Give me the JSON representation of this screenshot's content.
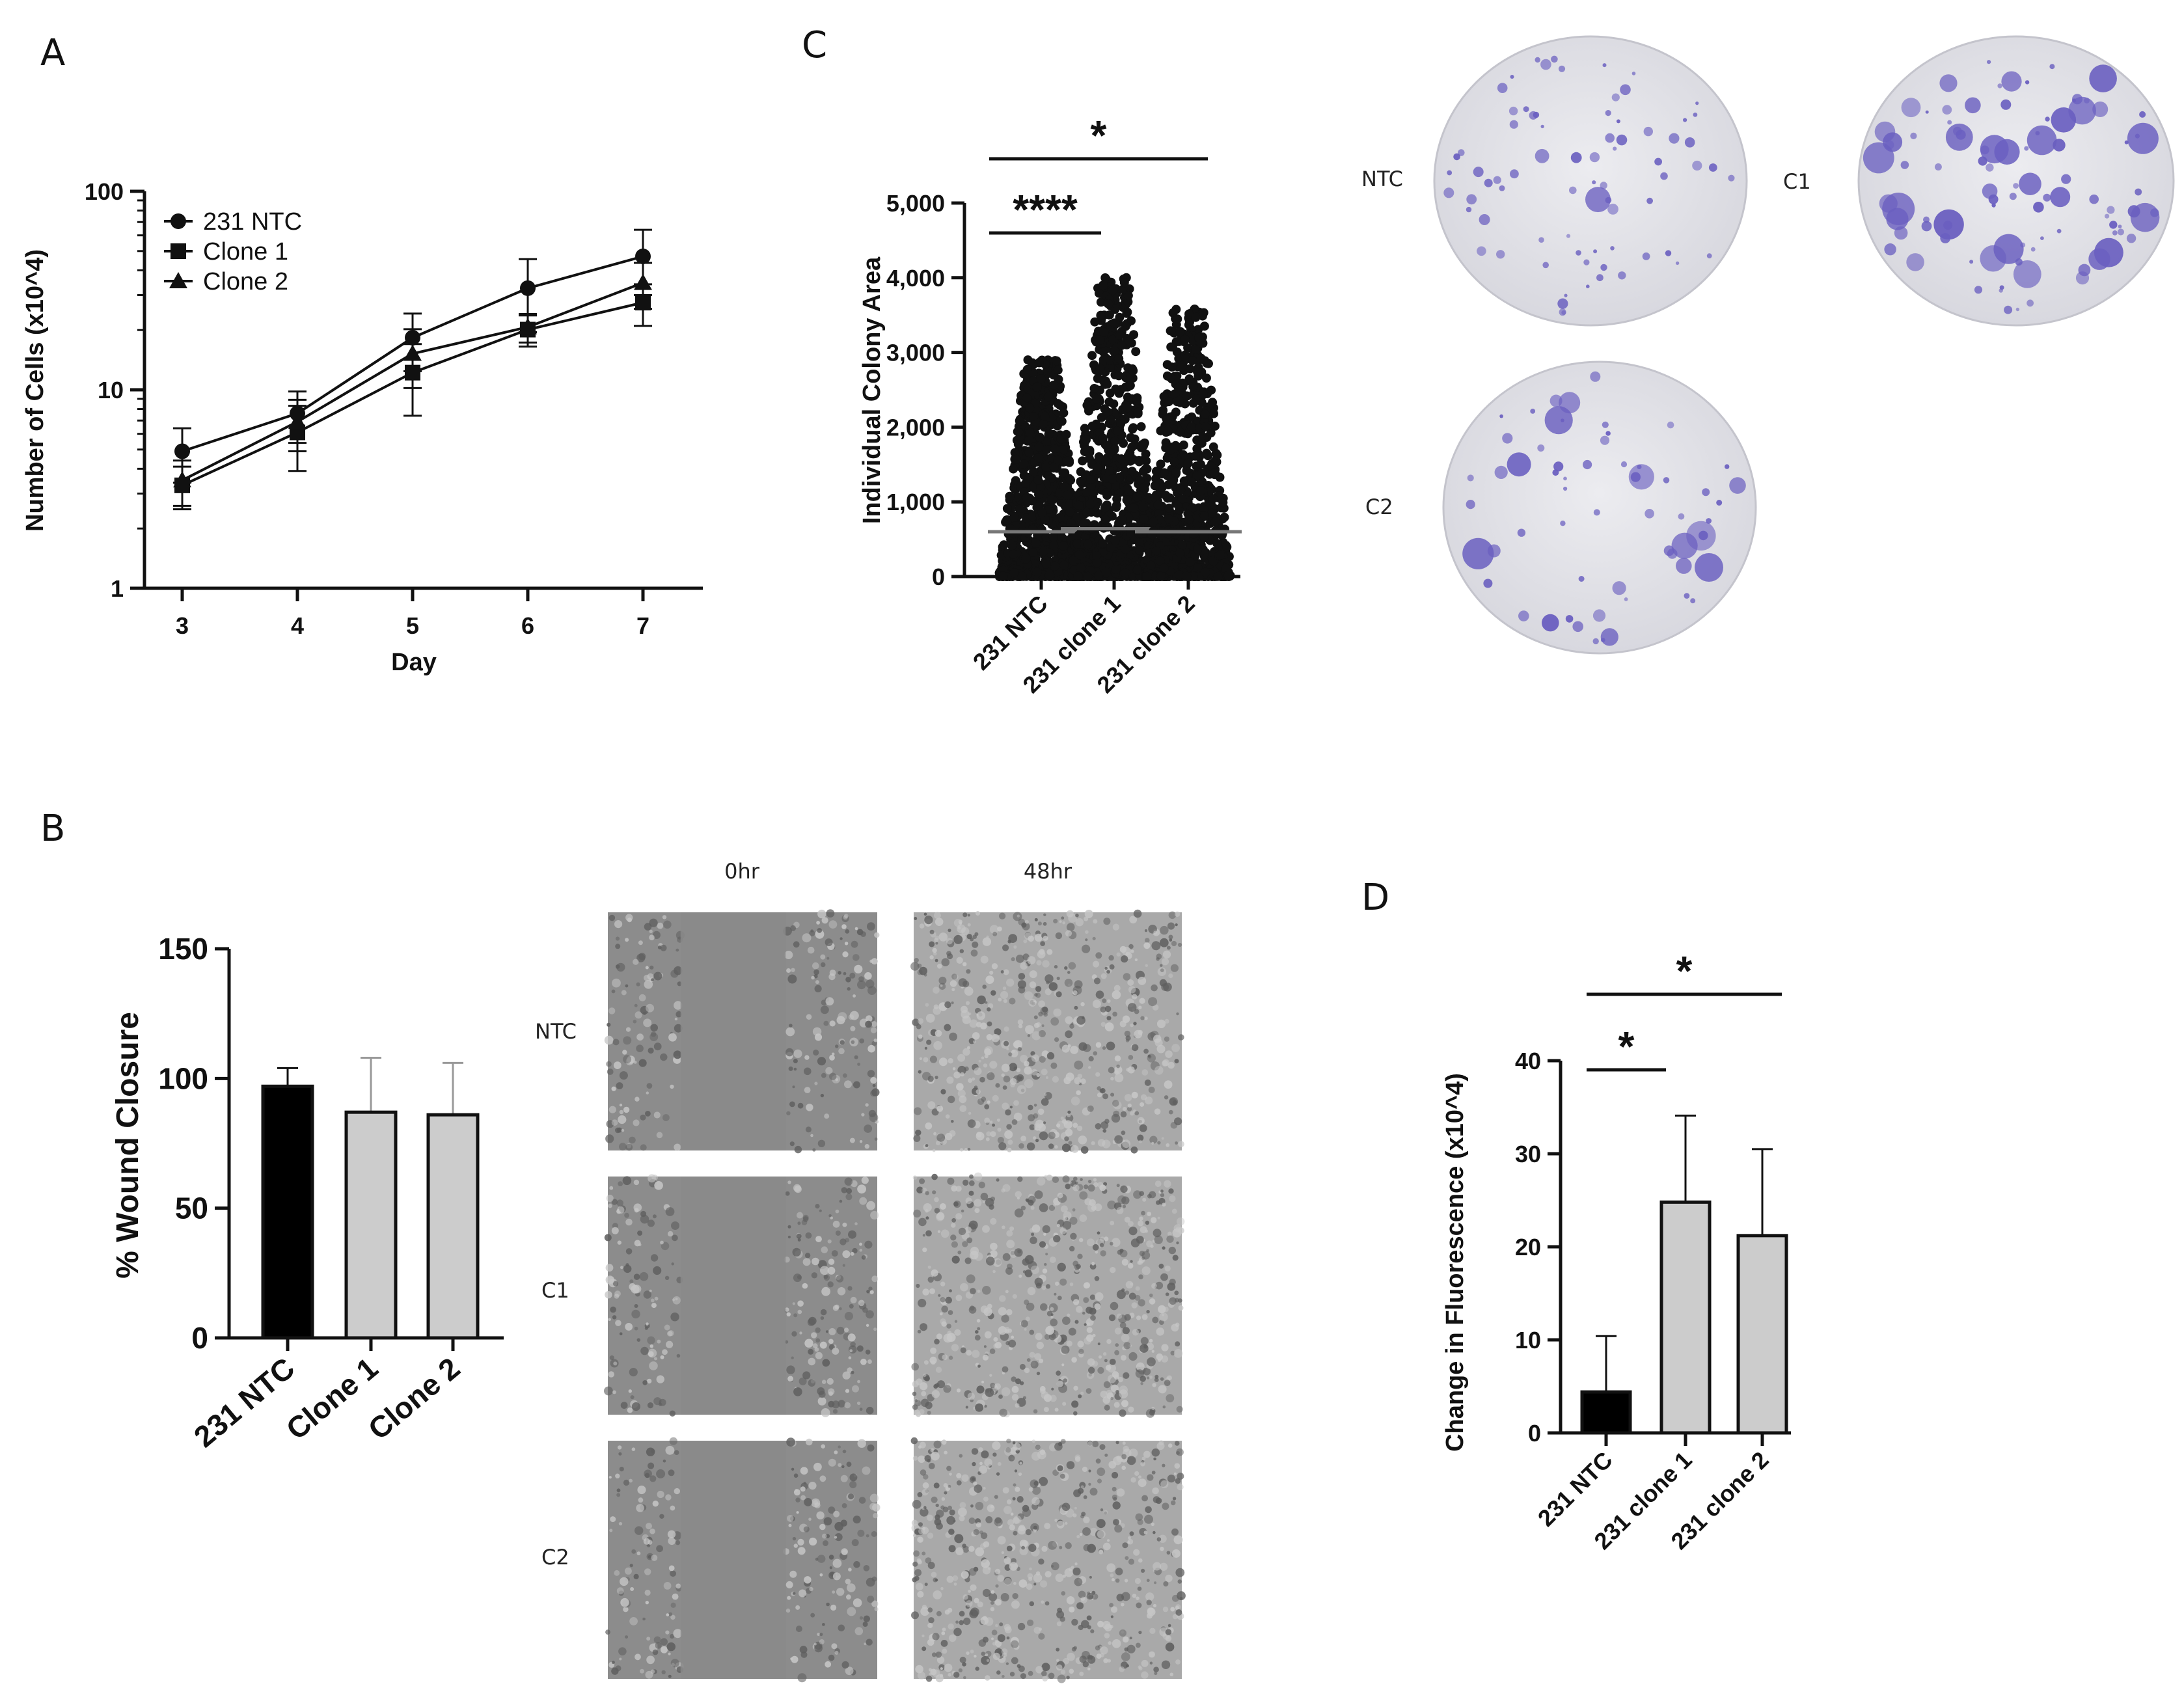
{
  "panels": {
    "A": "A",
    "B": "B",
    "C": "C",
    "D": "D"
  },
  "colors": {
    "ink": "#111111",
    "bar_black": "#000000",
    "bar_gray": "#cccccc",
    "plate_bg": "#e4e4ea",
    "colony": "#6a5fc0",
    "wound_bg": "#8f8f8f"
  },
  "images": {
    "colony_labels": {
      "ntc": "NTC",
      "c1": "C1",
      "c2": "C2"
    },
    "wound_time_labels": [
      "0hr",
      "48hr"
    ],
    "wound_row_labels": [
      "NTC",
      "C1",
      "C2"
    ]
  },
  "chart_data": [
    {
      "id": "A",
      "type": "line",
      "title": "",
      "xlabel": "Day",
      "ylabel": "Number of Cells (x10^4)",
      "yscale": "log",
      "ylim": [
        1,
        100
      ],
      "y_ticks": [
        "1",
        "10",
        "100"
      ],
      "x": [
        3,
        4,
        5,
        6,
        7
      ],
      "x_ticks": [
        "3",
        "4",
        "5",
        "6",
        "7"
      ],
      "legend_position": "top-left",
      "series": [
        {
          "name": "231 NTC",
          "marker": "circle",
          "values": [
            4.9,
            7.6,
            18.3,
            32.5,
            47.0
          ],
          "errors": [
            1.5,
            2.2,
            5.9,
            13.0,
            17.0
          ]
        },
        {
          "name": "Clone 1",
          "marker": "square",
          "values": [
            3.3,
            6.1,
            12.2,
            20.1,
            27.5
          ],
          "errors": [
            0.8,
            2.2,
            4.8,
            3.6,
            6.5
          ]
        },
        {
          "name": "Clone 2",
          "marker": "triangle",
          "values": [
            3.5,
            6.9,
            15.2,
            20.7,
            34.6
          ],
          "errors": [
            0.9,
            2.0,
            5.0,
            3.4,
            9.0
          ]
        }
      ]
    },
    {
      "id": "B",
      "type": "bar",
      "title": "",
      "xlabel": "",
      "ylabel": "% Wound Closure",
      "ylim": [
        0,
        150
      ],
      "y_ticks": [
        "0",
        "50",
        "100",
        "150"
      ],
      "categories": [
        "231 NTC",
        "Clone 1",
        "Clone 2"
      ],
      "values": [
        97,
        87,
        86
      ],
      "errors": [
        7,
        21,
        20
      ],
      "bar_colors": [
        "#000000",
        "#cccccc",
        "#cccccc"
      ]
    },
    {
      "id": "C",
      "type": "scatter",
      "title": "",
      "xlabel": "",
      "ylabel": "Individual Colony Area",
      "ylim": [
        0,
        5000
      ],
      "y_ticks": [
        "0",
        "1,000",
        "2,000",
        "3,000",
        "4,000",
        "5,000"
      ],
      "categories": [
        "231 NTC",
        "231 clone 1",
        "231 clone 2"
      ],
      "means": [
        600,
        640,
        600
      ],
      "max": [
        2900,
        4000,
        3580
      ],
      "significance": [
        {
          "from": 0,
          "to": 1,
          "label": "****"
        },
        {
          "from": 0,
          "to": 2,
          "label": "*"
        }
      ]
    },
    {
      "id": "D",
      "type": "bar",
      "title": "",
      "xlabel": "",
      "ylabel": "Change in Fluorescence (x10^4)",
      "ylim": [
        0,
        40
      ],
      "y_ticks": [
        "0",
        "10",
        "20",
        "30",
        "40"
      ],
      "categories": [
        "231 NTC",
        "231 clone 1",
        "231 clone 2"
      ],
      "values": [
        4.4,
        24.8,
        21.2
      ],
      "errors": [
        6.0,
        9.3,
        9.3
      ],
      "bar_colors": [
        "#000000",
        "#cccccc",
        "#cccccc"
      ],
      "significance": [
        {
          "from": 0,
          "to": 1,
          "label": "*"
        },
        {
          "from": 0,
          "to": 2,
          "label": "*"
        }
      ]
    }
  ]
}
